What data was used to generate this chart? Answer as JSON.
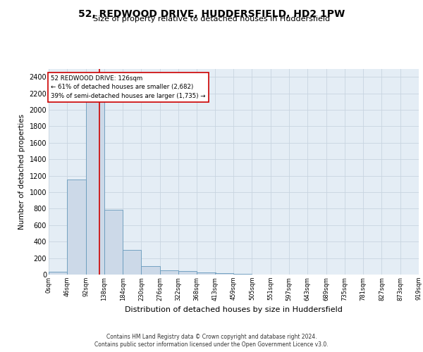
{
  "title": "52, REDWOOD DRIVE, HUDDERSFIELD, HD2 1PW",
  "subtitle": "Size of property relative to detached houses in Huddersfield",
  "xlabel": "Distribution of detached houses by size in Huddersfield",
  "ylabel": "Number of detached properties",
  "bar_color": "#ccd9e8",
  "bar_edge_color": "#6699bb",
  "grid_color": "#c8d4e0",
  "bg_color": "#e4edf5",
  "annotation_line_color": "#cc0000",
  "annotation_box_color": "#cc0000",
  "annotation_text": "52 REDWOOD DRIVE: 126sqm\n← 61% of detached houses are smaller (2,682)\n39% of semi-detached houses are larger (1,735) →",
  "property_sqm": 126,
  "bin_edges": [
    0,
    46,
    92,
    138,
    184,
    230,
    276,
    322,
    368,
    413,
    459,
    505,
    551,
    597,
    643,
    689,
    735,
    781,
    827,
    873,
    919
  ],
  "bin_labels": [
    "0sqm",
    "46sqm",
    "92sqm",
    "138sqm",
    "184sqm",
    "230sqm",
    "276sqm",
    "322sqm",
    "368sqm",
    "413sqm",
    "459sqm",
    "505sqm",
    "551sqm",
    "597sqm",
    "643sqm",
    "689sqm",
    "735sqm",
    "781sqm",
    "827sqm",
    "873sqm",
    "919sqm"
  ],
  "bar_heights": [
    30,
    1150,
    2200,
    790,
    295,
    100,
    50,
    40,
    25,
    15,
    5,
    0,
    0,
    0,
    0,
    0,
    0,
    0,
    0,
    0
  ],
  "ylim": [
    0,
    2500
  ],
  "yticks": [
    0,
    200,
    400,
    600,
    800,
    1000,
    1200,
    1400,
    1600,
    1800,
    2000,
    2200,
    2400
  ],
  "footer_line1": "Contains HM Land Registry data © Crown copyright and database right 2024.",
  "footer_line2": "Contains public sector information licensed under the Open Government Licence v3.0."
}
